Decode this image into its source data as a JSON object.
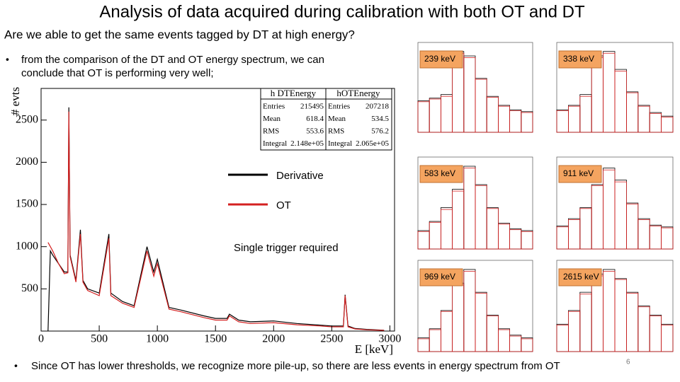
{
  "title": "Analysis of data acquired during calibration with both OT and DT",
  "question": "Are we able to get the same events tagged by DT at high energy?",
  "bullets": [
    "from the comparison of the DT and OT energy spectrum, we can",
    "conclude that OT is performing very well;",
    "Since OT has lower thresholds, we recognize more pile-up, so there are less events in energy spectrum from OT"
  ],
  "page_number": "6",
  "annotation": "Single trigger required",
  "stats": {
    "headers": [
      "h DTEnergy",
      "hOTEnergy"
    ],
    "rows": [
      [
        "Entries",
        "215495",
        "Entries",
        "207218"
      ],
      [
        "Mean",
        "618.4",
        "Mean",
        "534.5"
      ],
      [
        "RMS",
        "553.6",
        "RMS",
        "576.2"
      ],
      [
        "Integral",
        "2.148e+05",
        "Integral",
        "2.065e+05"
      ]
    ]
  },
  "chart_data": [
    {
      "type": "line",
      "xlabel": "E [keV]",
      "ylabel": "# evts",
      "xlim": [
        0,
        3040
      ],
      "ylim": [
        0,
        2875
      ],
      "xticks": [
        0,
        500,
        1000,
        1500,
        2000,
        2500,
        3000
      ],
      "yticks": [
        500,
        1000,
        1500,
        2000,
        2500
      ],
      "x": [
        60,
        80,
        100,
        150,
        200,
        230,
        239,
        250,
        300,
        338,
        360,
        400,
        500,
        583,
        600,
        700,
        800,
        911,
        969,
        1000,
        1100,
        1200,
        1400,
        1500,
        1600,
        1620,
        1700,
        1800,
        2000,
        2200,
        2400,
        2500,
        2600,
        2615,
        2640,
        2700,
        2800,
        2950
      ],
      "series": [
        {
          "name": "Derivative",
          "color": "#000000",
          "values": [
            0,
            950,
            900,
            800,
            700,
            700,
            2650,
            900,
            600,
            1200,
            600,
            500,
            450,
            1150,
            450,
            350,
            300,
            1000,
            700,
            850,
            280,
            250,
            180,
            150,
            150,
            200,
            130,
            110,
            120,
            90,
            70,
            60,
            60,
            430,
            60,
            30,
            20,
            10
          ]
        },
        {
          "name": "OT",
          "color": "#d42020",
          "values": [
            1050,
            1000,
            950,
            800,
            680,
            690,
            2600,
            880,
            580,
            1150,
            580,
            480,
            420,
            1100,
            420,
            330,
            280,
            950,
            650,
            800,
            260,
            230,
            160,
            130,
            130,
            180,
            110,
            90,
            100,
            75,
            60,
            50,
            50,
            420,
            50,
            25,
            15,
            8
          ]
        }
      ]
    },
    {
      "type": "histogram",
      "label": "239 keV",
      "ylim": [
        0,
        1000
      ],
      "series": [
        {
          "color": "#000000",
          "values": [
            350,
            380,
            420,
            900,
            850,
            600,
            400,
            300,
            250,
            230
          ]
        },
        {
          "color": "#d42020",
          "values": [
            340,
            370,
            400,
            880,
            830,
            590,
            390,
            290,
            240,
            220
          ]
        }
      ]
    },
    {
      "type": "histogram",
      "label": "338 keV",
      "ylim": [
        0,
        1000
      ],
      "series": [
        {
          "color": "#000000",
          "values": [
            250,
            300,
            420,
            850,
            900,
            700,
            450,
            300,
            220,
            180
          ]
        },
        {
          "color": "#d42020",
          "values": [
            240,
            290,
            400,
            830,
            880,
            680,
            440,
            290,
            210,
            170
          ]
        }
      ]
    },
    {
      "type": "histogram",
      "label": "583 keV",
      "ylim": [
        0,
        1000
      ],
      "series": [
        {
          "color": "#000000",
          "values": [
            200,
            300,
            450,
            650,
            900,
            700,
            450,
            280,
            220,
            200
          ]
        },
        {
          "color": "#d42020",
          "values": [
            190,
            290,
            430,
            630,
            880,
            690,
            440,
            270,
            210,
            190
          ]
        }
      ]
    },
    {
      "type": "histogram",
      "label": "911 keV",
      "ylim": [
        0,
        1000
      ],
      "series": [
        {
          "color": "#000000",
          "values": [
            250,
            330,
            450,
            700,
            880,
            750,
            500,
            330,
            260,
            240
          ]
        },
        {
          "color": "#d42020",
          "values": [
            240,
            320,
            440,
            690,
            860,
            730,
            490,
            320,
            250,
            230
          ]
        }
      ]
    },
    {
      "type": "histogram",
      "label": "969 keV",
      "ylim": [
        0,
        1000
      ],
      "series": [
        {
          "color": "#000000",
          "values": [
            150,
            250,
            450,
            750,
            900,
            650,
            400,
            250,
            180,
            150
          ]
        },
        {
          "color": "#d42020",
          "values": [
            140,
            240,
            440,
            730,
            880,
            640,
            390,
            240,
            170,
            140
          ]
        }
      ]
    },
    {
      "type": "histogram",
      "label": "2615 keV",
      "ylim": [
        0,
        1000
      ],
      "series": [
        {
          "color": "#000000",
          "values": [
            300,
            450,
            650,
            850,
            900,
            800,
            650,
            500,
            400,
            300
          ]
        },
        {
          "color": "#d42020",
          "values": [
            290,
            440,
            630,
            830,
            880,
            790,
            640,
            490,
            390,
            290
          ]
        }
      ]
    }
  ]
}
